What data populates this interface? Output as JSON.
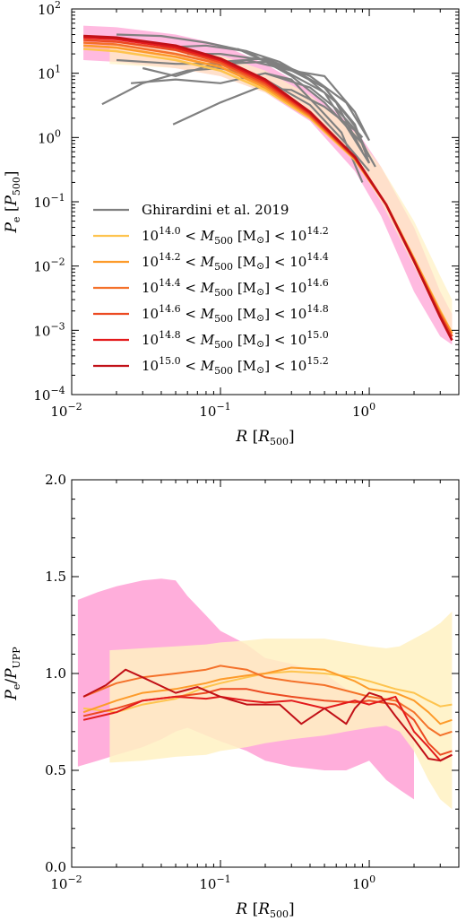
{
  "chart_data": [
    {
      "type": "line",
      "panel": "top",
      "xlabel": "R [R500]",
      "ylabel": "Pe [P500]",
      "xscale": "log",
      "yscale": "log",
      "xlim": [
        0.01,
        4
      ],
      "ylim": [
        0.0001,
        100
      ],
      "x_ticks": [
        0.01,
        0.1,
        1
      ],
      "x_tick_labels": [
        "10",
        "10",
        "10"
      ],
      "x_tick_exponents": [
        "−2",
        "−1",
        "0"
      ],
      "y_ticks": [
        0.0001,
        0.001,
        0.01,
        0.1,
        1,
        10,
        100
      ],
      "y_tick_labels": [
        "10",
        "10",
        "10",
        "10",
        "10",
        "10",
        "10"
      ],
      "y_tick_exponents": [
        "−4",
        "−3",
        "−2",
        "−1",
        "0",
        "1",
        "2"
      ],
      "legend_position": "lower-left",
      "legend": [
        {
          "label": "Ghirardini et al. 2019",
          "color": "#808080"
        },
        {
          "label": "10^14.0 < M500 [M⊙] < 10^14.2",
          "color": "#fec44f"
        },
        {
          "label": "10^14.2 < M500 [M⊙] < 10^14.4",
          "color": "#fd9b2a"
        },
        {
          "label": "10^14.4 < M500 [M⊙] < 10^14.6",
          "color": "#f4712a"
        },
        {
          "label": "10^14.6 < M500 [M⊙] < 10^14.8",
          "color": "#ec4a22"
        },
        {
          "label": "10^14.8 < M500 [M⊙] < 10^15.0",
          "color": "#e31a1c"
        },
        {
          "label": "10^15.0 < M500 [M⊙] < 10^15.2",
          "color": "#c11017"
        }
      ],
      "bands": [
        {
          "color": "#ff8ccc",
          "opacity": 0.6,
          "x": [
            0.012,
            0.02,
            0.05,
            0.1,
            0.2,
            0.4,
            0.8,
            1.2,
            2.0,
            3.0,
            3.6
          ],
          "upper": [
            55,
            52,
            40,
            28,
            14,
            5.5,
            1.4,
            0.35,
            0.04,
            0.004,
            0.0018
          ],
          "lower": [
            16,
            15,
            12,
            9,
            5,
            1.8,
            0.3,
            0.06,
            0.004,
            0.0008,
            0.0006
          ]
        },
        {
          "color": "#fff1c2",
          "opacity": 0.7,
          "x": [
            0.018,
            0.05,
            0.1,
            0.2,
            0.4,
            0.8,
            1.2,
            2.0,
            3.0,
            3.6
          ],
          "upper": [
            30,
            25,
            19,
            11,
            4.5,
            1.2,
            0.35,
            0.05,
            0.007,
            0.003
          ],
          "lower": [
            14,
            12,
            9,
            5,
            2.0,
            0.45,
            0.1,
            0.01,
            0.0015,
            0.0008
          ]
        }
      ],
      "obs_series": [
        {
          "x": [
            0.016,
            0.03,
            0.06,
            0.1,
            0.2,
            0.4,
            0.7,
            1.0
          ],
          "y": [
            3.3,
            7,
            11,
            12,
            8,
            3.2,
            0.8,
            0.3
          ]
        },
        {
          "x": [
            0.02,
            0.04,
            0.08,
            0.15,
            0.3,
            0.5,
            0.9
          ],
          "y": [
            40,
            38,
            30,
            22,
            9,
            3.5,
            0.8
          ]
        },
        {
          "x": [
            0.02,
            0.05,
            0.1,
            0.2,
            0.3,
            0.5,
            0.8,
            1.0
          ],
          "y": [
            16,
            14,
            14,
            15,
            11,
            6,
            1.6,
            0.4
          ]
        },
        {
          "x": [
            0.025,
            0.05,
            0.1,
            0.2,
            0.4,
            0.6,
            0.9
          ],
          "y": [
            7,
            8,
            7,
            10,
            6,
            2.8,
            1.0
          ]
        },
        {
          "x": [
            0.048,
            0.1,
            0.18,
            0.3,
            0.5,
            0.8,
            1.1
          ],
          "y": [
            1.6,
            3.5,
            6,
            5.5,
            3.0,
            1.3,
            0.35
          ]
        },
        {
          "x": [
            0.03,
            0.05,
            0.1,
            0.2,
            0.4,
            0.7,
            1.0
          ],
          "y": [
            12,
            9,
            15,
            17,
            9,
            3.5,
            0.9
          ]
        },
        {
          "x": [
            0.04,
            0.08,
            0.15,
            0.25,
            0.5,
            0.8,
            1.0
          ],
          "y": [
            25,
            27,
            22,
            15,
            6,
            1.5,
            0.5
          ]
        },
        {
          "x": [
            0.06,
            0.1,
            0.2,
            0.35,
            0.6,
            0.9
          ],
          "y": [
            20,
            20,
            16,
            10,
            3.5,
            0.6
          ]
        },
        {
          "x": [
            0.08,
            0.15,
            0.3,
            0.5,
            0.8,
            1.0
          ],
          "y": [
            12,
            16,
            11,
            9,
            2.5,
            0.9
          ]
        },
        {
          "x": [
            0.13,
            0.25,
            0.5,
            0.7,
            1.0
          ],
          "y": [
            24,
            12,
            5,
            1.5,
            0.4
          ]
        },
        {
          "x": [
            0.2,
            0.3,
            0.45,
            0.65,
            0.9
          ],
          "y": [
            10,
            8,
            3.0,
            1.2,
            0.2
          ]
        }
      ],
      "series": [
        {
          "color": "#fec44f",
          "x": [
            0.012,
            0.02,
            0.05,
            0.1,
            0.2,
            0.4,
            0.8,
            1.3,
            2.0,
            3.0,
            3.6
          ],
          "y": [
            24,
            22,
            16,
            11,
            5.5,
            2.0,
            0.45,
            0.09,
            0.013,
            0.002,
            0.0009
          ]
        },
        {
          "color": "#fd9b2a",
          "x": [
            0.012,
            0.02,
            0.05,
            0.1,
            0.2,
            0.4,
            0.8,
            1.3,
            2.0,
            3.0,
            3.6
          ],
          "y": [
            27,
            25,
            18,
            12.5,
            6.0,
            2.1,
            0.47,
            0.09,
            0.013,
            0.0019,
            0.0009
          ]
        },
        {
          "color": "#f4712a",
          "x": [
            0.012,
            0.02,
            0.05,
            0.1,
            0.2,
            0.4,
            0.8,
            1.3,
            2.0,
            3.0,
            3.6
          ],
          "y": [
            30,
            28,
            20,
            14,
            6.5,
            2.2,
            0.47,
            0.09,
            0.012,
            0.0018,
            0.0008
          ]
        },
        {
          "color": "#ec4a22",
          "x": [
            0.012,
            0.02,
            0.05,
            0.1,
            0.2,
            0.4,
            0.8,
            1.3,
            2.0,
            3.0,
            3.6
          ],
          "y": [
            33,
            31,
            23,
            15,
            7.0,
            2.3,
            0.48,
            0.09,
            0.012,
            0.0017,
            0.0008
          ]
        },
        {
          "color": "#e31a1c",
          "x": [
            0.012,
            0.02,
            0.05,
            0.1,
            0.2,
            0.4,
            0.8,
            1.3,
            2.0,
            3.0,
            3.6
          ],
          "y": [
            36,
            34,
            25,
            16,
            7.5,
            2.4,
            0.5,
            0.09,
            0.012,
            0.0016,
            0.0007
          ]
        },
        {
          "color": "#c11017",
          "x": [
            0.012,
            0.02,
            0.05,
            0.1,
            0.2,
            0.4,
            0.8,
            1.3,
            2.0,
            3.0,
            3.6
          ],
          "y": [
            38,
            36,
            27,
            17,
            8.0,
            2.5,
            0.5,
            0.09,
            0.012,
            0.0016,
            0.0007
          ]
        }
      ]
    },
    {
      "type": "line",
      "panel": "bottom",
      "xlabel": "R [R500]",
      "ylabel": "Pe/PUPP",
      "xscale": "log",
      "yscale": "linear",
      "xlim": [
        0.01,
        4
      ],
      "ylim": [
        0.0,
        2.0
      ],
      "x_ticks": [
        0.01,
        0.1,
        1
      ],
      "x_tick_labels": [
        "10",
        "10",
        "10"
      ],
      "x_tick_exponents": [
        "−2",
        "−1",
        "0"
      ],
      "y_ticks": [
        0.0,
        0.5,
        1.0,
        1.5,
        2.0
      ],
      "y_tick_labels": [
        "0.0",
        "0.5",
        "1.0",
        "1.5",
        "2.0"
      ],
      "bands": [
        {
          "color": "#ff8ccc",
          "opacity": 0.7,
          "x": [
            0.011,
            0.015,
            0.02,
            0.03,
            0.04,
            0.05,
            0.06,
            0.08,
            0.1,
            0.15,
            0.2,
            0.3,
            0.5,
            0.7,
            1.0,
            1.3,
            1.6,
            2.0
          ],
          "upper": [
            1.38,
            1.42,
            1.45,
            1.48,
            1.49,
            1.48,
            1.4,
            1.3,
            1.22,
            1.15,
            1.08,
            1.05,
            1.0,
            0.92,
            0.87,
            0.86,
            0.86,
            0.8
          ],
          "lower": [
            0.52,
            0.55,
            0.58,
            0.62,
            0.66,
            0.7,
            0.72,
            0.68,
            0.65,
            0.6,
            0.55,
            0.52,
            0.5,
            0.5,
            0.55,
            0.45,
            0.4,
            0.35
          ]
        },
        {
          "color": "#fff1c2",
          "opacity": 0.85,
          "x": [
            0.018,
            0.03,
            0.05,
            0.08,
            0.1,
            0.15,
            0.2,
            0.3,
            0.5,
            0.7,
            1.0,
            1.3,
            1.6,
            2.0,
            2.5,
            3.0,
            3.6
          ],
          "upper": [
            1.12,
            1.13,
            1.14,
            1.15,
            1.16,
            1.17,
            1.18,
            1.18,
            1.18,
            1.16,
            1.14,
            1.13,
            1.14,
            1.18,
            1.22,
            1.26,
            1.32
          ],
          "lower": [
            0.54,
            0.55,
            0.57,
            0.58,
            0.6,
            0.62,
            0.64,
            0.66,
            0.68,
            0.7,
            0.72,
            0.73,
            0.7,
            0.6,
            0.45,
            0.35,
            0.3
          ]
        }
      ],
      "series": [
        {
          "color": "#fec44f",
          "x": [
            0.012,
            0.02,
            0.03,
            0.05,
            0.08,
            0.1,
            0.15,
            0.2,
            0.3,
            0.5,
            0.8,
            1.0,
            1.5,
            2.0,
            2.5,
            3.0,
            3.6
          ],
          "y": [
            0.82,
            0.8,
            0.84,
            0.87,
            0.93,
            0.95,
            0.98,
            1.0,
            1.01,
            1.0,
            0.98,
            0.96,
            0.92,
            0.9,
            0.86,
            0.83,
            0.84
          ]
        },
        {
          "color": "#fd9b2a",
          "x": [
            0.012,
            0.02,
            0.03,
            0.05,
            0.08,
            0.1,
            0.15,
            0.2,
            0.3,
            0.5,
            0.8,
            1.0,
            1.5,
            2.0,
            2.5,
            3.0,
            3.6
          ],
          "y": [
            0.8,
            0.86,
            0.9,
            0.92,
            0.95,
            0.97,
            0.99,
            1.0,
            1.03,
            1.02,
            0.96,
            0.92,
            0.9,
            0.86,
            0.8,
            0.74,
            0.76
          ]
        },
        {
          "color": "#f4712a",
          "x": [
            0.012,
            0.02,
            0.03,
            0.05,
            0.08,
            0.1,
            0.15,
            0.2,
            0.3,
            0.5,
            0.8,
            1.0,
            1.5,
            2.0,
            2.5,
            3.0,
            3.6
          ],
          "y": [
            0.88,
            0.95,
            0.98,
            1.0,
            1.02,
            1.04,
            1.02,
            0.98,
            0.96,
            0.94,
            0.9,
            0.88,
            0.86,
            0.8,
            0.72,
            0.68,
            0.7
          ]
        },
        {
          "color": "#ec4a22",
          "x": [
            0.012,
            0.02,
            0.03,
            0.05,
            0.08,
            0.1,
            0.15,
            0.2,
            0.3,
            0.5,
            0.8,
            1.0,
            1.5,
            2.0,
            2.5,
            3.0,
            3.6
          ],
          "y": [
            0.78,
            0.82,
            0.86,
            0.88,
            0.9,
            0.92,
            0.92,
            0.9,
            0.88,
            0.86,
            0.85,
            0.86,
            0.84,
            0.76,
            0.64,
            0.58,
            0.6
          ]
        },
        {
          "color": "#e31a1c",
          "x": [
            0.012,
            0.02,
            0.03,
            0.05,
            0.08,
            0.1,
            0.15,
            0.2,
            0.3,
            0.5,
            0.8,
            1.0,
            1.5,
            2.0,
            2.5,
            3.0,
            3.6
          ],
          "y": [
            0.76,
            0.8,
            0.86,
            0.88,
            0.87,
            0.88,
            0.86,
            0.85,
            0.86,
            0.82,
            0.86,
            0.84,
            0.88,
            0.7,
            0.62,
            0.55,
            0.58
          ]
        },
        {
          "color": "#c11017",
          "x": [
            0.012,
            0.017,
            0.023,
            0.03,
            0.05,
            0.07,
            0.1,
            0.15,
            0.2,
            0.25,
            0.35,
            0.5,
            0.7,
            0.8,
            1.0,
            1.2,
            1.5,
            2.0,
            2.5,
            3.0,
            3.6
          ],
          "y": [
            0.88,
            0.94,
            1.02,
            0.98,
            0.9,
            0.93,
            0.88,
            0.84,
            0.84,
            0.84,
            0.74,
            0.82,
            0.74,
            0.82,
            0.9,
            0.88,
            0.78,
            0.66,
            0.56,
            0.55,
            0.58
          ]
        }
      ]
    }
  ]
}
